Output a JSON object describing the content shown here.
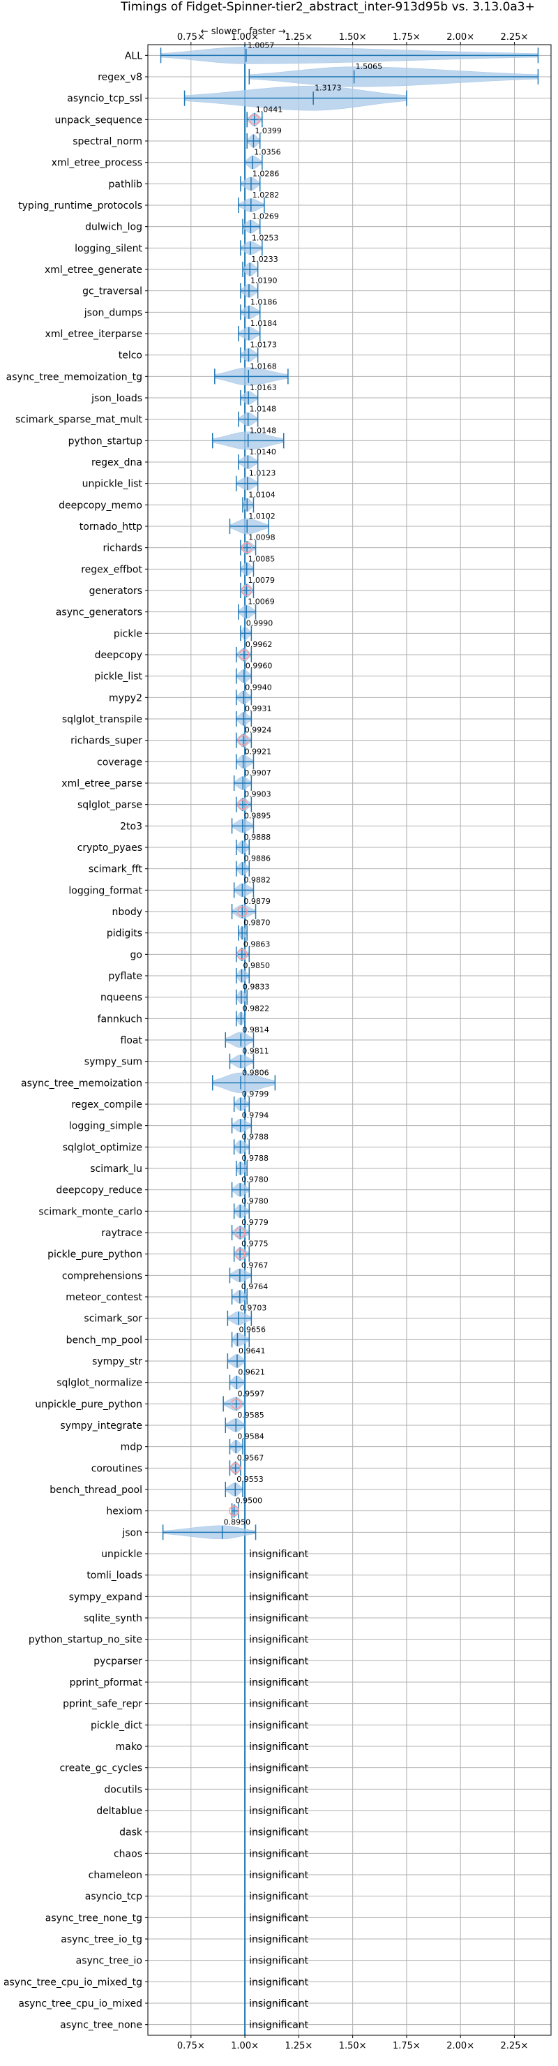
{
  "chart_data": {
    "type": "violin",
    "title": "Timings of Fidget-Spinner-tier2_abstract_inter-913d95b vs. 3.13.0a3+",
    "direction_labels": {
      "slower": "← slower",
      "faster": "faster →"
    },
    "xlim": [
      0.55,
      2.42
    ],
    "x_ticks": [
      0.75,
      1.0,
      1.25,
      1.5,
      1.75,
      2.0,
      2.25
    ],
    "x_tick_labels": [
      "0.75×",
      "1.00×",
      "1.25×",
      "1.50×",
      "1.75×",
      "2.00×",
      "2.25×"
    ],
    "reference_line": 1.0,
    "colors": {
      "body": "#a8c8e8",
      "line": "#1f77b4",
      "significant_marker": "#ff9999"
    },
    "insignificant_label": "insignificant",
    "benchmarks": [
      {
        "name": "ALL",
        "value": "1.0057",
        "mean": 1.0057,
        "min": 0.61,
        "max": 2.36,
        "width": 0.38,
        "sig": false
      },
      {
        "name": "regex_v8",
        "value": "1.5065",
        "mean": 1.5065,
        "min": 1.02,
        "max": 2.36,
        "width": 0.45,
        "sig": false
      },
      {
        "name": "asyncio_tcp_ssl",
        "value": "1.3173",
        "mean": 1.3173,
        "min": 0.72,
        "max": 1.75,
        "width": 0.55,
        "sig": false
      },
      {
        "name": "unpack_sequence",
        "value": "1.0441",
        "mean": 1.0441,
        "min": 1.01,
        "max": 1.08,
        "width": 0.3,
        "sig": true
      },
      {
        "name": "spectral_norm",
        "value": "1.0399",
        "mean": 1.0399,
        "min": 1.01,
        "max": 1.07,
        "width": 0.3,
        "sig": false
      },
      {
        "name": "xml_etree_process",
        "value": "1.0356",
        "mean": 1.0356,
        "min": 1.0,
        "max": 1.08,
        "width": 0.3,
        "sig": false
      },
      {
        "name": "pathlib",
        "value": "1.0286",
        "mean": 1.0286,
        "min": 0.98,
        "max": 1.07,
        "width": 0.3,
        "sig": false
      },
      {
        "name": "typing_runtime_protocols",
        "value": "1.0282",
        "mean": 1.0282,
        "min": 0.97,
        "max": 1.09,
        "width": 0.3,
        "sig": false
      },
      {
        "name": "dulwich_log",
        "value": "1.0269",
        "mean": 1.0269,
        "min": 0.99,
        "max": 1.07,
        "width": 0.3,
        "sig": false
      },
      {
        "name": "logging_silent",
        "value": "1.0253",
        "mean": 1.0253,
        "min": 0.98,
        "max": 1.08,
        "width": 0.3,
        "sig": false
      },
      {
        "name": "xml_etree_generate",
        "value": "1.0233",
        "mean": 1.0233,
        "min": 0.99,
        "max": 1.06,
        "width": 0.3,
        "sig": false
      },
      {
        "name": "gc_traversal",
        "value": "1.0190",
        "mean": 1.019,
        "min": 0.98,
        "max": 1.06,
        "width": 0.3,
        "sig": false
      },
      {
        "name": "json_dumps",
        "value": "1.0186",
        "mean": 1.0186,
        "min": 0.98,
        "max": 1.07,
        "width": 0.3,
        "sig": false
      },
      {
        "name": "xml_etree_iterparse",
        "value": "1.0184",
        "mean": 1.0184,
        "min": 0.97,
        "max": 1.07,
        "width": 0.3,
        "sig": false
      },
      {
        "name": "telco",
        "value": "1.0173",
        "mean": 1.0173,
        "min": 0.98,
        "max": 1.06,
        "width": 0.3,
        "sig": false
      },
      {
        "name": "async_tree_memoization_tg",
        "value": "1.0168",
        "mean": 1.0168,
        "min": 0.86,
        "max": 1.2,
        "width": 0.4,
        "sig": false
      },
      {
        "name": "json_loads",
        "value": "1.0163",
        "mean": 1.0163,
        "min": 0.98,
        "max": 1.06,
        "width": 0.3,
        "sig": false
      },
      {
        "name": "scimark_sparse_mat_mult",
        "value": "1.0148",
        "mean": 1.0148,
        "min": 0.97,
        "max": 1.06,
        "width": 0.3,
        "sig": false
      },
      {
        "name": "python_startup",
        "value": "1.0148",
        "mean": 1.0148,
        "min": 0.85,
        "max": 1.18,
        "width": 0.4,
        "sig": false
      },
      {
        "name": "regex_dna",
        "value": "1.0140",
        "mean": 1.014,
        "min": 0.97,
        "max": 1.06,
        "width": 0.3,
        "sig": false
      },
      {
        "name": "unpickle_list",
        "value": "1.0123",
        "mean": 1.0123,
        "min": 0.96,
        "max": 1.06,
        "width": 0.3,
        "sig": false
      },
      {
        "name": "deepcopy_memo",
        "value": "1.0104",
        "mean": 1.0104,
        "min": 0.99,
        "max": 1.04,
        "width": 0.3,
        "sig": false
      },
      {
        "name": "tornado_http",
        "value": "1.0102",
        "mean": 1.0102,
        "min": 0.93,
        "max": 1.11,
        "width": 0.35,
        "sig": false
      },
      {
        "name": "richards",
        "value": "1.0098",
        "mean": 1.0098,
        "min": 0.98,
        "max": 1.05,
        "width": 0.3,
        "sig": true
      },
      {
        "name": "regex_effbot",
        "value": "1.0085",
        "mean": 1.0085,
        "min": 0.98,
        "max": 1.04,
        "width": 0.3,
        "sig": false
      },
      {
        "name": "generators",
        "value": "1.0079",
        "mean": 1.0079,
        "min": 0.98,
        "max": 1.04,
        "width": 0.3,
        "sig": true
      },
      {
        "name": "async_generators",
        "value": "1.0069",
        "mean": 1.0069,
        "min": 0.97,
        "max": 1.05,
        "width": 0.3,
        "sig": false
      },
      {
        "name": "pickle",
        "value": "0.9990",
        "mean": 0.999,
        "min": 0.98,
        "max": 1.03,
        "width": 0.3,
        "sig": false
      },
      {
        "name": "deepcopy",
        "value": "0.9962",
        "mean": 0.9962,
        "min": 0.96,
        "max": 1.03,
        "width": 0.3,
        "sig": true
      },
      {
        "name": "pickle_list",
        "value": "0.9960",
        "mean": 0.996,
        "min": 0.96,
        "max": 1.03,
        "width": 0.3,
        "sig": false
      },
      {
        "name": "mypy2",
        "value": "0.9940",
        "mean": 0.994,
        "min": 0.96,
        "max": 1.03,
        "width": 0.3,
        "sig": false
      },
      {
        "name": "sqlglot_transpile",
        "value": "0.9931",
        "mean": 0.9931,
        "min": 0.96,
        "max": 1.03,
        "width": 0.3,
        "sig": false
      },
      {
        "name": "richards_super",
        "value": "0.9924",
        "mean": 0.9924,
        "min": 0.96,
        "max": 1.03,
        "width": 0.3,
        "sig": true
      },
      {
        "name": "coverage",
        "value": "0.9921",
        "mean": 0.9921,
        "min": 0.96,
        "max": 1.04,
        "width": 0.3,
        "sig": false
      },
      {
        "name": "xml_etree_parse",
        "value": "0.9907",
        "mean": 0.9907,
        "min": 0.95,
        "max": 1.03,
        "width": 0.3,
        "sig": false
      },
      {
        "name": "sqlglot_parse",
        "value": "0.9903",
        "mean": 0.9903,
        "min": 0.96,
        "max": 1.03,
        "width": 0.3,
        "sig": true
      },
      {
        "name": "2to3",
        "value": "0.9895",
        "mean": 0.9895,
        "min": 0.94,
        "max": 1.04,
        "width": 0.3,
        "sig": false
      },
      {
        "name": "crypto_pyaes",
        "value": "0.9888",
        "mean": 0.9888,
        "min": 0.96,
        "max": 1.02,
        "width": 0.3,
        "sig": false
      },
      {
        "name": "scimark_fft",
        "value": "0.9886",
        "mean": 0.9886,
        "min": 0.96,
        "max": 1.02,
        "width": 0.3,
        "sig": false
      },
      {
        "name": "logging_format",
        "value": "0.9882",
        "mean": 0.9882,
        "min": 0.95,
        "max": 1.04,
        "width": 0.3,
        "sig": false
      },
      {
        "name": "nbody",
        "value": "0.9879",
        "mean": 0.9879,
        "min": 0.94,
        "max": 1.05,
        "width": 0.3,
        "sig": true
      },
      {
        "name": "pidigits",
        "value": "0.9870",
        "mean": 0.987,
        "min": 0.97,
        "max": 1.01,
        "width": 0.3,
        "sig": false
      },
      {
        "name": "go",
        "value": "0.9863",
        "mean": 0.9863,
        "min": 0.96,
        "max": 1.02,
        "width": 0.3,
        "sig": true
      },
      {
        "name": "pyflate",
        "value": "0.9850",
        "mean": 0.985,
        "min": 0.96,
        "max": 1.02,
        "width": 0.3,
        "sig": false
      },
      {
        "name": "nqueens",
        "value": "0.9833",
        "mean": 0.9833,
        "min": 0.96,
        "max": 1.01,
        "width": 0.3,
        "sig": false
      },
      {
        "name": "fannkuch",
        "value": "0.9822",
        "mean": 0.9822,
        "min": 0.96,
        "max": 1.0,
        "width": 0.3,
        "sig": false
      },
      {
        "name": "float",
        "value": "0.9814",
        "mean": 0.9814,
        "min": 0.91,
        "max": 1.04,
        "width": 0.35,
        "sig": false
      },
      {
        "name": "sympy_sum",
        "value": "0.9811",
        "mean": 0.9811,
        "min": 0.93,
        "max": 1.04,
        "width": 0.3,
        "sig": false
      },
      {
        "name": "async_tree_memoization",
        "value": "0.9806",
        "mean": 0.9806,
        "min": 0.85,
        "max": 1.14,
        "width": 0.45,
        "sig": false
      },
      {
        "name": "regex_compile",
        "value": "0.9799",
        "mean": 0.9799,
        "min": 0.95,
        "max": 1.02,
        "width": 0.3,
        "sig": false
      },
      {
        "name": "logging_simple",
        "value": "0.9794",
        "mean": 0.9794,
        "min": 0.94,
        "max": 1.03,
        "width": 0.3,
        "sig": false
      },
      {
        "name": "sqlglot_optimize",
        "value": "0.9788",
        "mean": 0.9788,
        "min": 0.95,
        "max": 1.02,
        "width": 0.3,
        "sig": false
      },
      {
        "name": "scimark_lu",
        "value": "0.9788",
        "mean": 0.9788,
        "min": 0.96,
        "max": 1.01,
        "width": 0.3,
        "sig": false
      },
      {
        "name": "deepcopy_reduce",
        "value": "0.9780",
        "mean": 0.978,
        "min": 0.94,
        "max": 1.02,
        "width": 0.3,
        "sig": false
      },
      {
        "name": "scimark_monte_carlo",
        "value": "0.9780",
        "mean": 0.978,
        "min": 0.95,
        "max": 1.02,
        "width": 0.3,
        "sig": false
      },
      {
        "name": "raytrace",
        "value": "0.9779",
        "mean": 0.9779,
        "min": 0.94,
        "max": 1.02,
        "width": 0.3,
        "sig": true
      },
      {
        "name": "pickle_pure_python",
        "value": "0.9775",
        "mean": 0.9775,
        "min": 0.95,
        "max": 1.02,
        "width": 0.3,
        "sig": true
      },
      {
        "name": "comprehensions",
        "value": "0.9767",
        "mean": 0.9767,
        "min": 0.93,
        "max": 1.03,
        "width": 0.3,
        "sig": false
      },
      {
        "name": "meteor_contest",
        "value": "0.9764",
        "mean": 0.9764,
        "min": 0.94,
        "max": 1.01,
        "width": 0.3,
        "sig": false
      },
      {
        "name": "scimark_sor",
        "value": "0.9703",
        "mean": 0.9703,
        "min": 0.92,
        "max": 1.03,
        "width": 0.3,
        "sig": false
      },
      {
        "name": "bench_mp_pool",
        "value": "0.9656",
        "mean": 0.9656,
        "min": 0.94,
        "max": 1.02,
        "width": 0.3,
        "sig": false
      },
      {
        "name": "sympy_str",
        "value": "0.9641",
        "mean": 0.9641,
        "min": 0.92,
        "max": 1.0,
        "width": 0.3,
        "sig": false
      },
      {
        "name": "sqlglot_normalize",
        "value": "0.9621",
        "mean": 0.9621,
        "min": 0.93,
        "max": 1.0,
        "width": 0.3,
        "sig": false
      },
      {
        "name": "unpickle_pure_python",
        "value": "0.9597",
        "mean": 0.9597,
        "min": 0.9,
        "max": 1.0,
        "width": 0.3,
        "sig": true
      },
      {
        "name": "sympy_integrate",
        "value": "0.9585",
        "mean": 0.9585,
        "min": 0.91,
        "max": 1.0,
        "width": 0.3,
        "sig": false
      },
      {
        "name": "mdp",
        "value": "0.9584",
        "mean": 0.9584,
        "min": 0.93,
        "max": 0.99,
        "width": 0.3,
        "sig": false
      },
      {
        "name": "coroutines",
        "value": "0.9567",
        "mean": 0.9567,
        "min": 0.93,
        "max": 0.98,
        "width": 0.3,
        "sig": true
      },
      {
        "name": "bench_thread_pool",
        "value": "0.9553",
        "mean": 0.9553,
        "min": 0.91,
        "max": 0.99,
        "width": 0.3,
        "sig": false
      },
      {
        "name": "hexiom",
        "value": "0.9500",
        "mean": 0.95,
        "min": 0.94,
        "max": 0.97,
        "width": 0.3,
        "sig": true
      },
      {
        "name": "json",
        "value": "0.8950",
        "mean": 0.895,
        "min": 0.62,
        "max": 1.05,
        "width": 0.3,
        "sig": false
      },
      {
        "name": "unpickle",
        "insignificant": true
      },
      {
        "name": "tomli_loads",
        "insignificant": true
      },
      {
        "name": "sympy_expand",
        "insignificant": true
      },
      {
        "name": "sqlite_synth",
        "insignificant": true
      },
      {
        "name": "python_startup_no_site",
        "insignificant": true
      },
      {
        "name": "pycparser",
        "insignificant": true
      },
      {
        "name": "pprint_pformat",
        "insignificant": true
      },
      {
        "name": "pprint_safe_repr",
        "insignificant": true
      },
      {
        "name": "pickle_dict",
        "insignificant": true
      },
      {
        "name": "mako",
        "insignificant": true
      },
      {
        "name": "create_gc_cycles",
        "insignificant": true
      },
      {
        "name": "docutils",
        "insignificant": true
      },
      {
        "name": "deltablue",
        "insignificant": true
      },
      {
        "name": "dask",
        "insignificant": true
      },
      {
        "name": "chaos",
        "insignificant": true
      },
      {
        "name": "chameleon",
        "insignificant": true
      },
      {
        "name": "asyncio_tcp",
        "insignificant": true
      },
      {
        "name": "async_tree_none_tg",
        "insignificant": true
      },
      {
        "name": "async_tree_io_tg",
        "insignificant": true
      },
      {
        "name": "async_tree_io",
        "insignificant": true
      },
      {
        "name": "async_tree_cpu_io_mixed_tg",
        "insignificant": true
      },
      {
        "name": "async_tree_cpu_io_mixed",
        "insignificant": true
      },
      {
        "name": "async_tree_none",
        "insignificant": true
      }
    ]
  }
}
